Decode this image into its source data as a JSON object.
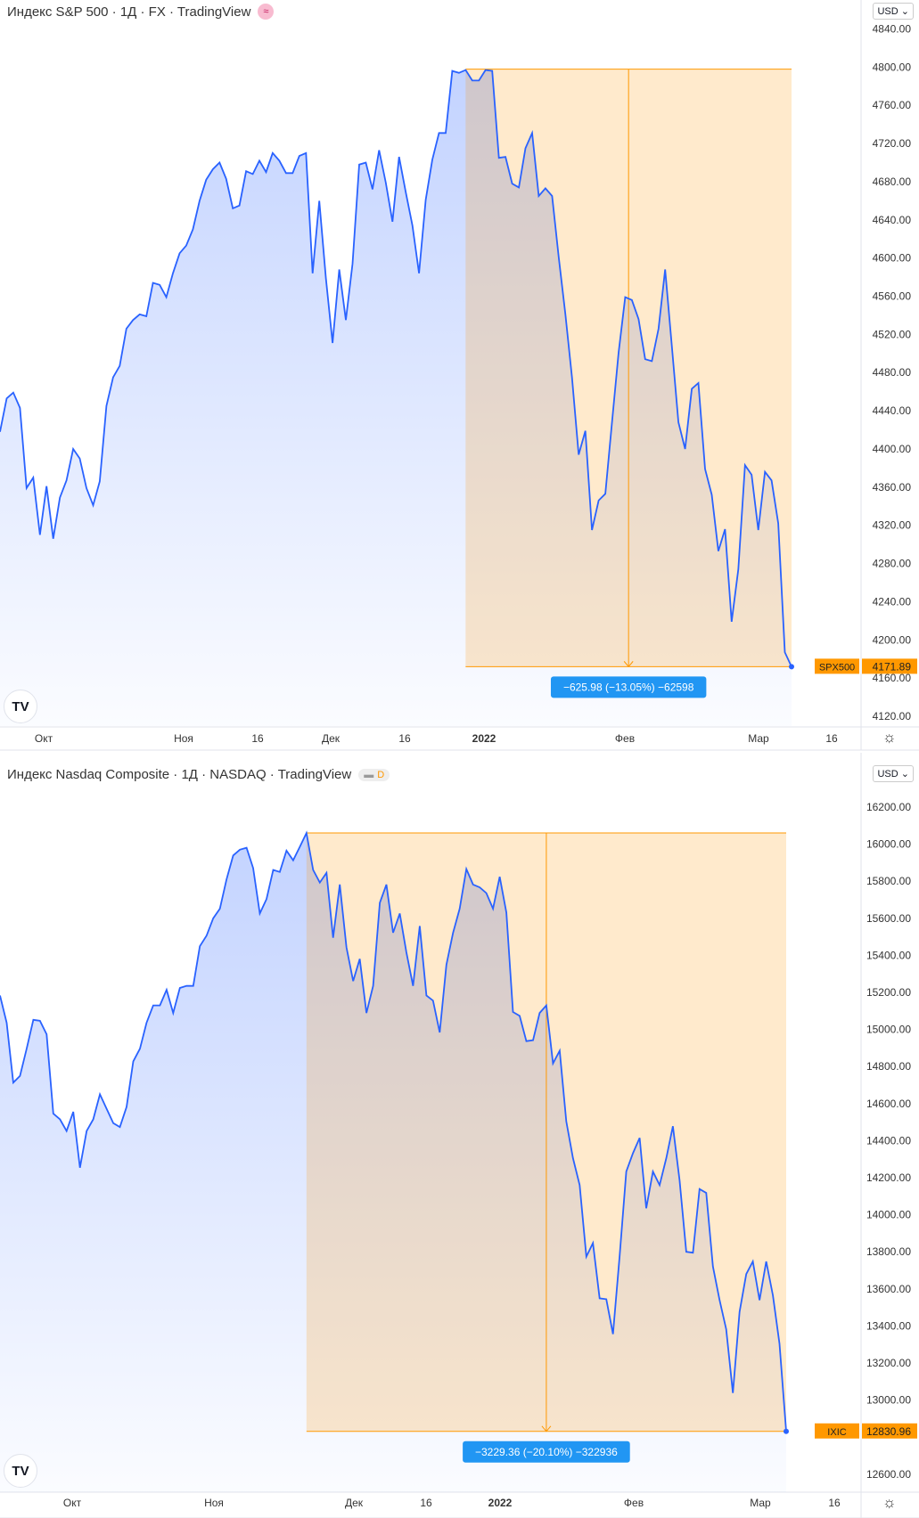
{
  "charts": [
    {
      "header": {
        "title": "Индекс S&P 500 · 1Д · FX · TradingView",
        "badge_icon": "wave-icon"
      },
      "currency": "USD",
      "price_ticks": [
        "4840.00",
        "4800.00",
        "4760.00",
        "4720.00",
        "4680.00",
        "4640.00",
        "4600.00",
        "4560.00",
        "4520.00",
        "4480.00",
        "4440.00",
        "4400.00",
        "4360.00",
        "4320.00",
        "4280.00",
        "4240.00",
        "4200.00",
        "4160.00",
        "4120.00"
      ],
      "time_labels": [
        "Окт",
        "Ноя",
        "16",
        "Дек",
        "16",
        "2022",
        "Фев",
        "Мар",
        "16"
      ],
      "symbol": "SPX500",
      "last_price": "4171.89",
      "measure_label": "−625.98 (−13.05%) −62598"
    },
    {
      "header": {
        "title": "Индекс Nasdaq Composite · 1Д · NASDAQ · TradingView",
        "badge_text": "D"
      },
      "currency": "USD",
      "price_ticks": [
        "16200.00",
        "16000.00",
        "15800.00",
        "15600.00",
        "15400.00",
        "15200.00",
        "15000.00",
        "14800.00",
        "14600.00",
        "14400.00",
        "14200.00",
        "14000.00",
        "13800.00",
        "13600.00",
        "13400.00",
        "13200.00",
        "13000.00",
        "12600.00"
      ],
      "time_labels": [
        "Окт",
        "Ноя",
        "Дек",
        "16",
        "2022",
        "Фев",
        "Мар",
        "16"
      ],
      "symbol": "IXIC",
      "last_price": "12830.96",
      "measure_label": "−3229.36 (−20.10%) −322936"
    }
  ],
  "colors": {
    "line": "#2962ff",
    "measure": "#ff9800",
    "measure_label_bg": "#2196f3"
  },
  "chart_data": [
    {
      "type": "area",
      "title": "Индекс S&P 500 · 1Д · FX",
      "ylim": [
        4120,
        4840
      ],
      "x_tick_labels": [
        "Окт",
        "Ноя",
        "16",
        "Дек",
        "16",
        "2022",
        "Фев",
        "Мар",
        "16"
      ],
      "values": [
        4418,
        4453,
        4459,
        4443,
        4359,
        4370,
        4310,
        4361,
        4306,
        4349,
        4367,
        4400,
        4390,
        4359,
        4341,
        4366,
        4445,
        4475,
        4487,
        4526,
        4535,
        4541,
        4539,
        4574,
        4572,
        4559,
        4584,
        4605,
        4613,
        4630,
        4660,
        4682,
        4693,
        4700,
        4683,
        4652,
        4655,
        4691,
        4688,
        4702,
        4690,
        4710,
        4702,
        4689,
        4689,
        4707,
        4710,
        4584,
        4660,
        4579,
        4511,
        4588,
        4535,
        4594,
        4698,
        4700,
        4672,
        4713,
        4679,
        4638,
        4706,
        4669,
        4634,
        4584,
        4661,
        4703,
        4731,
        4731,
        4796,
        4794,
        4797,
        4786,
        4786,
        4797,
        4796,
        4705,
        4706,
        4678,
        4674,
        4715,
        4731,
        4665,
        4673,
        4665,
        4601,
        4541,
        4475,
        4394,
        4419,
        4315,
        4346,
        4353,
        4427,
        4501,
        4559,
        4556,
        4536,
        4494,
        4492,
        4526,
        4588,
        4508,
        4428,
        4400,
        4463,
        4469,
        4379,
        4352,
        4293,
        4316,
        4219,
        4274,
        4383,
        4373,
        4315,
        4376,
        4367,
        4322,
        4187,
        4171.89
      ],
      "measure": {
        "from": 4797.87,
        "to": 4171.89,
        "change": -625.98,
        "percent": -13.05
      }
    },
    {
      "type": "area",
      "title": "Индекс Nasdaq Composite · 1Д · NASDAQ",
      "ylim": [
        12600,
        16200
      ],
      "x_tick_labels": [
        "Окт",
        "Ноя",
        "Дек",
        "16",
        "2022",
        "Фев",
        "Мар",
        "16"
      ],
      "values": [
        15183,
        15036,
        14713,
        14749,
        14896,
        15052,
        15047,
        14974,
        14546,
        14515,
        14452,
        14556,
        14254,
        14452,
        14515,
        14650,
        14572,
        14494,
        14473,
        14582,
        14828,
        14896,
        15036,
        15130,
        15130,
        15214,
        15089,
        15224,
        15235,
        15235,
        15449,
        15506,
        15600,
        15652,
        15809,
        15939,
        15970,
        15981,
        15871,
        15626,
        15704,
        15861,
        15850,
        15965,
        15913,
        15986,
        16060.32,
        15861,
        15793,
        15845,
        15495,
        15782,
        15443,
        15261,
        15381,
        15089,
        15235,
        15683,
        15782,
        15522,
        15626,
        15417,
        15235,
        15558,
        15183,
        15156,
        14984,
        15349,
        15522,
        15652,
        15866,
        15782,
        15767,
        15736,
        15652,
        15824,
        15631,
        15094,
        15073,
        14937,
        14942,
        15089,
        15130,
        14817,
        14885,
        14504,
        14306,
        14160,
        13774,
        13847,
        13549,
        13544,
        13356,
        13774,
        14233,
        14332,
        14415,
        14035,
        14233,
        14160,
        14306,
        14478,
        14186,
        13800,
        13795,
        14139,
        14118,
        13721,
        13539,
        13382,
        13038,
        13476,
        13680,
        13748,
        13539,
        13748,
        13565,
        13304,
        12830.96
      ],
      "measure": {
        "from": 16060.32,
        "to": 12830.96,
        "change": -3229.36,
        "percent": -20.1
      }
    }
  ]
}
